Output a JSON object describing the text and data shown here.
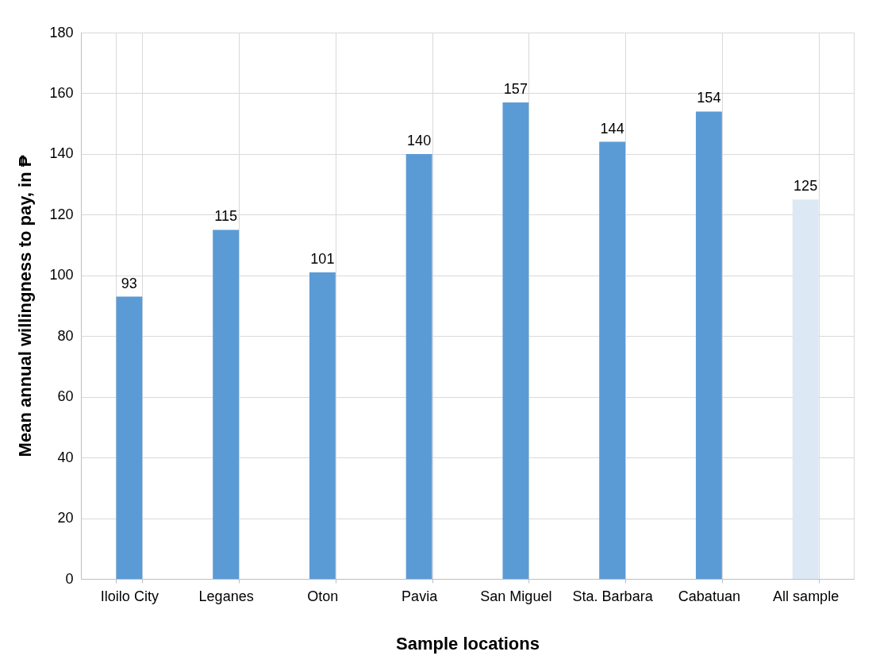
{
  "chart_data": {
    "type": "bar",
    "xlabel": "Sample locations",
    "ylabel": "Mean annual willingness to pay, in ₱",
    "categories": [
      "Iloilo City",
      "Leganes",
      "Oton",
      "Pavia",
      "San Miguel",
      "Sta. Barbara",
      "Cabatuan",
      "All sample"
    ],
    "values": [
      93,
      115,
      101,
      140,
      157,
      144,
      154,
      125
    ],
    "colors": [
      "#5b9bd5",
      "#5b9bd5",
      "#5b9bd5",
      "#5b9bd5",
      "#5b9bd5",
      "#5b9bd5",
      "#5b9bd5",
      "#dde8f5"
    ],
    "ylim": [
      0,
      180
    ],
    "yticks": [
      0,
      20,
      40,
      60,
      80,
      100,
      120,
      140,
      160,
      180
    ],
    "grid": true,
    "data_labels": true
  }
}
